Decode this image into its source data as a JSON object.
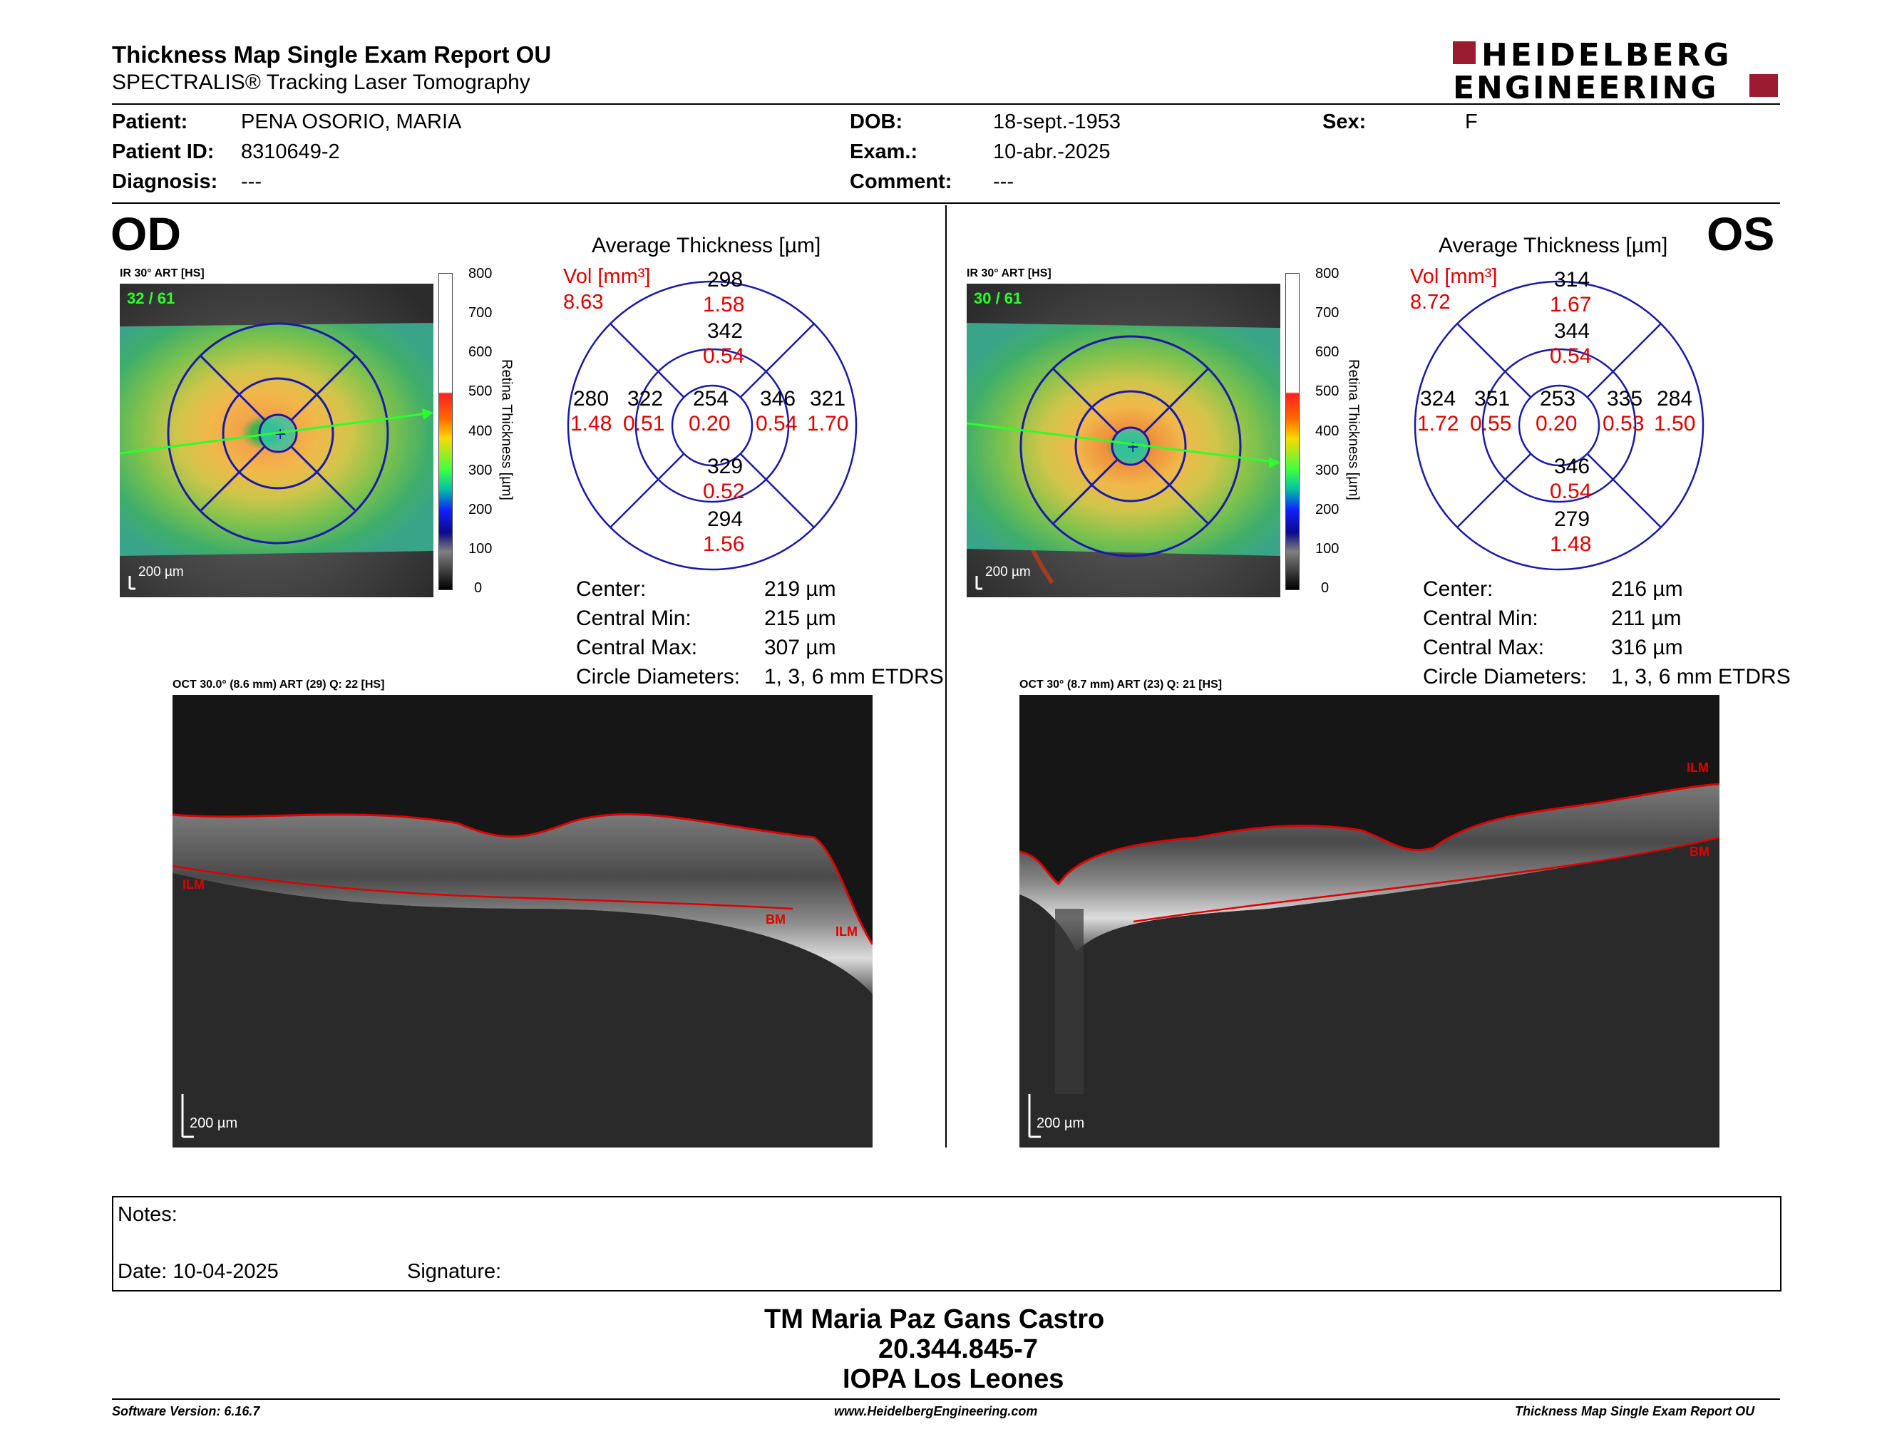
{
  "header": {
    "title": "Thickness Map Single Exam Report OU",
    "subtitle": "SPECTRALIS® Tracking Laser Tomography",
    "logo_line1": "HEIDELBERG",
    "logo_line2": "ENGINEERING"
  },
  "patient": {
    "patient_label": "Patient:",
    "patient_value": "PENA OSORIO, MARIA",
    "id_label": "Patient ID:",
    "id_value": "8310649-2",
    "diagnosis_label": "Diagnosis:",
    "diagnosis_value": "---",
    "dob_label": "DOB:",
    "dob_value": "18-sept.-1953",
    "exam_label": "Exam.:",
    "exam_value": "10-abr.-2025",
    "comment_label": "Comment:",
    "comment_value": "---",
    "sex_label": "Sex:",
    "sex_value": "F"
  },
  "colorbar": {
    "ticks": [
      "800",
      "700",
      "600",
      "500",
      "400",
      "300",
      "200",
      "100",
      "0"
    ],
    "label": "Retina Thickness [µm]"
  },
  "od": {
    "eye": "OD",
    "ir_caption": "IR 30° ART [HS]",
    "ir_count": "32 / 61",
    "ir_scale": "200 µm",
    "avg_title": "Average Thickness [µm]",
    "vol_label": "Vol [mm³]",
    "vol_value": "8.63",
    "grid": {
      "outer_sup": "298",
      "outer_sup_vol": "1.58",
      "inner_sup": "342",
      "inner_sup_vol": "0.54",
      "outer_left": "280",
      "outer_left_vol": "1.48",
      "inner_left": "322",
      "inner_left_vol": "0.51",
      "center": "254",
      "center_vol": "0.20",
      "inner_right": "346",
      "inner_right_vol": "0.54",
      "outer_right": "321",
      "outer_right_vol": "1.70",
      "inner_inf": "329",
      "inner_inf_vol": "0.52",
      "outer_inf": "294",
      "outer_inf_vol": "1.56"
    },
    "stats": {
      "center_label": "Center:",
      "center_value": "219 µm",
      "cmin_label": "Central Min:",
      "cmin_value": "215 µm",
      "cmax_label": "Central Max:",
      "cmax_value": "307 µm",
      "diam_label": "Circle Diameters:",
      "diam_value": "1, 3, 6 mm ETDRS"
    },
    "oct_caption": "OCT 30.0° (8.6 mm) ART (29) Q: 22 [HS]",
    "oct_scale": "200 µm",
    "oct_labels": {
      "a": "ILM",
      "b": "BM",
      "c": "ILM"
    }
  },
  "os": {
    "eye": "OS",
    "ir_caption": "IR 30° ART [HS]",
    "ir_count": "30 / 61",
    "ir_scale": "200 µm",
    "avg_title": "Average Thickness [µm]",
    "vol_label": "Vol [mm³]",
    "vol_value": "8.72",
    "grid": {
      "outer_sup": "314",
      "outer_sup_vol": "1.67",
      "inner_sup": "344",
      "inner_sup_vol": "0.54",
      "outer_left": "324",
      "outer_left_vol": "1.72",
      "inner_left": "351",
      "inner_left_vol": "0.55",
      "center": "253",
      "center_vol": "0.20",
      "inner_right": "335",
      "inner_right_vol": "0.53",
      "outer_right": "284",
      "outer_right_vol": "1.50",
      "inner_inf": "346",
      "inner_inf_vol": "0.54",
      "outer_inf": "279",
      "outer_inf_vol": "1.48"
    },
    "stats": {
      "center_label": "Center:",
      "center_value": "216 µm",
      "cmin_label": "Central Min:",
      "cmin_value": "211 µm",
      "cmax_label": "Central Max:",
      "cmax_value": "316 µm",
      "diam_label": "Circle Diameters:",
      "diam_value": "1, 3, 6 mm ETDRS"
    },
    "oct_caption": "OCT 30° (8.7 mm) ART (23) Q: 21 [HS]",
    "oct_scale": "200 µm",
    "oct_labels": {
      "a": "ILM",
      "b": "BM"
    }
  },
  "notes": {
    "notes_label": "Notes:",
    "date_label": "Date: 10-04-2025",
    "signature_label": "Signature:"
  },
  "signer": {
    "name": "TM Maria Paz Gans Castro",
    "rut": "20.344.845-7",
    "org": "IOPA Los Leones"
  },
  "footer": {
    "software": "Software Version: 6.16.7",
    "url": "www.HeidelbergEngineering.com",
    "report": "Thickness Map Single Exam Report OU"
  },
  "colors": {
    "accent_red": "#e00000",
    "logo_red": "#9b1b30",
    "grid_blue": "#1a1aa8"
  }
}
